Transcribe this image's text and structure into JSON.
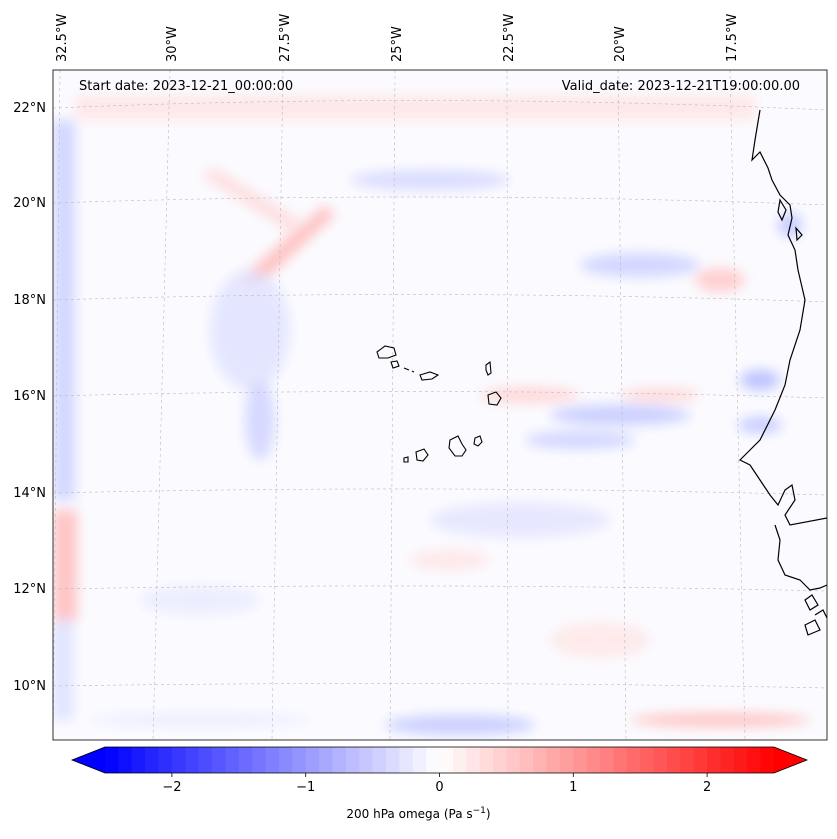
{
  "map": {
    "start_date": "Start date: 2023-12-21_00:00:00",
    "valid_date": "Valid_date: 2023-12-21T19:00:00.00",
    "lon_labels": [
      "32.5°W",
      "30°W",
      "27.5°W",
      "25°W",
      "22.5°W",
      "20°W",
      "17.5°W"
    ],
    "lat_labels": [
      "22°N",
      "20°N",
      "18°N",
      "16°N",
      "14°N",
      "12°N",
      "10°N"
    ],
    "field_name": "200 hPa omega",
    "units_base": "(Pa s",
    "units_exp": "−1",
    "units_close": ")"
  },
  "colorbar": {
    "ticks": [
      "−2",
      "−1",
      "0",
      "1",
      "2"
    ],
    "values": [
      -2,
      -1,
      0,
      1,
      2
    ],
    "range": [
      -2.5,
      2.5
    ],
    "low_color": "#0000ff",
    "mid_color": "#ffffff",
    "high_color": "#ff0000"
  },
  "colors": {
    "land_outline": "#000000",
    "grid": "#bbbbbb"
  }
}
